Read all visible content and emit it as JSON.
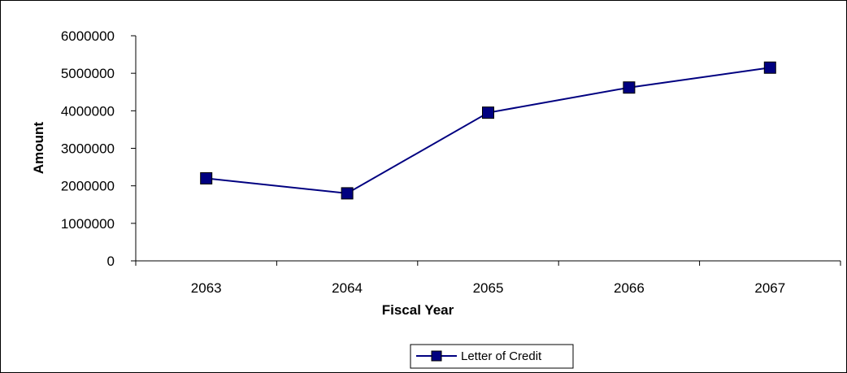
{
  "chart_data": {
    "type": "line",
    "title": "",
    "xlabel": "Fiscal Year",
    "ylabel": "Amount",
    "categories": [
      "2063",
      "2064",
      "2065",
      "2066",
      "2067"
    ],
    "y_ticks": [
      "0",
      "1000000",
      "2000000",
      "3000000",
      "4000000",
      "5000000",
      "6000000"
    ],
    "ylim": [
      0,
      6000000
    ],
    "grid": false,
    "legend_position": "bottom",
    "series": [
      {
        "name": "Letter of Credit",
        "values": [
          2200000,
          1800000,
          3950000,
          4620000,
          5150000
        ],
        "color": "#000080",
        "marker": "square"
      }
    ]
  }
}
